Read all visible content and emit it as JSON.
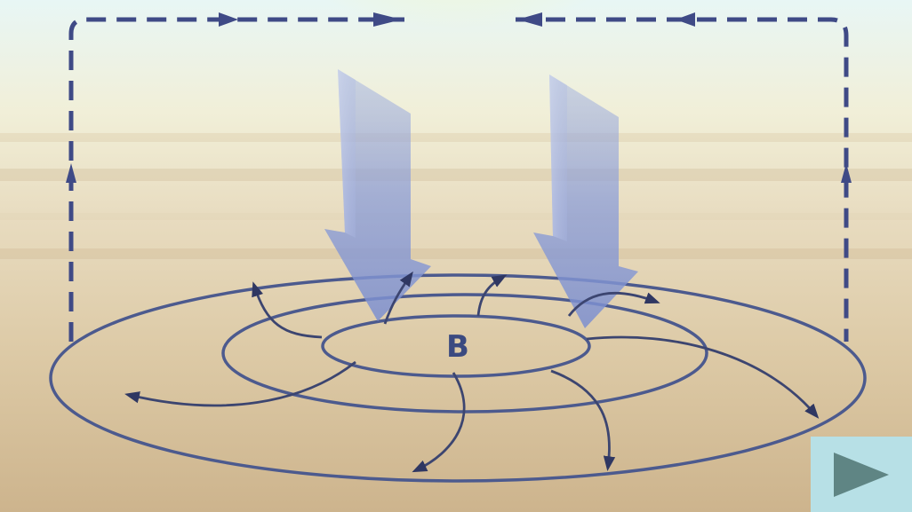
{
  "diagram": {
    "center_label": "B",
    "colors": {
      "ring_stroke": "#4c5a8e",
      "flow_stroke": "#3c4570",
      "dash_stroke": "#3f4a86",
      "down_arrow_fill": "#8c9ed8",
      "sun_glow": "#fff36a",
      "sky": "#eaf6f4",
      "ground": "#d6c29e",
      "label_color": "#3b4a80",
      "next_button_bg": "#b7e0e6",
      "next_button_icon": "#5f8584"
    },
    "icons": {
      "next": "play-triangle-icon",
      "down_arrows": "descending-air-arrow-icon"
    }
  }
}
